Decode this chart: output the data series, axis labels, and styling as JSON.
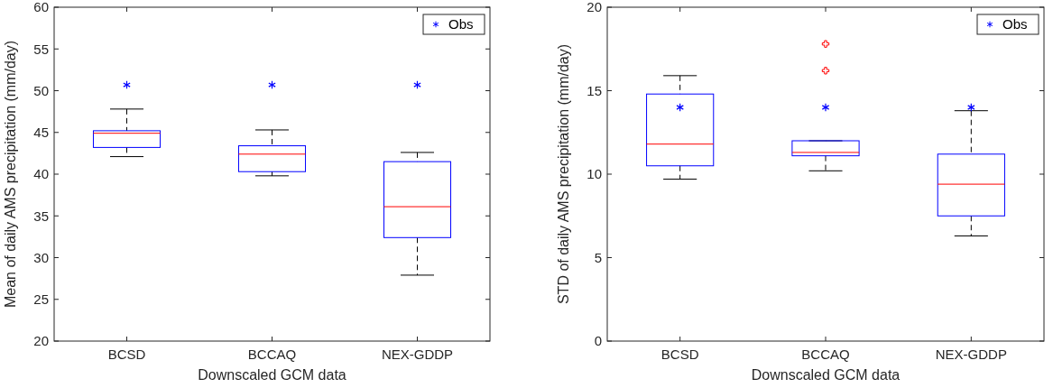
{
  "chart_data": [
    {
      "type": "box",
      "xlabel": "Downscaled GCM data",
      "ylabel": "Mean of daily AMS precipitation (mm/day)",
      "categories": [
        "BCSD",
        "BCCAQ",
        "NEX-GDDP"
      ],
      "ylim": [
        20,
        60
      ],
      "yticks": [
        20,
        25,
        30,
        35,
        40,
        45,
        50,
        55,
        60
      ],
      "grid": false,
      "legend": "top right",
      "series": [
        {
          "color": "#0000ff",
          "boxes": [
            {
              "low": 42.1,
              "q1": 43.2,
              "median": 44.9,
              "q3": 45.2,
              "high": 47.8
            },
            {
              "low": 39.8,
              "q1": 40.3,
              "median": 42.4,
              "q3": 43.4,
              "high": 45.3
            },
            {
              "low": 27.9,
              "q1": 32.4,
              "median": 36.1,
              "q3": 41.5,
              "high": 42.6
            }
          ]
        },
        {
          "type": "scatter",
          "name": "Obs",
          "color": "#0000ff",
          "marker": "cross",
          "x": [
            "BCSD",
            "BCCAQ",
            "NEX-GDDP"
          ],
          "values": [
            50.7,
            50.7,
            50.7
          ]
        }
      ]
    },
    {
      "type": "box",
      "xlabel": "Downscaled GCM data",
      "ylabel": "STD of daily AMS precipitation (mm/day)",
      "categories": [
        "BCSD",
        "BCCAQ",
        "NEX-GDDP"
      ],
      "ylim": [
        0,
        20
      ],
      "yticks": [
        0,
        5,
        10,
        15,
        20
      ],
      "grid": false,
      "legend": "top right",
      "series": [
        {
          "color": "#0000ff",
          "boxes": [
            {
              "low": 9.7,
              "q1": 10.5,
              "median": 11.8,
              "q3": 14.8,
              "high": 15.9
            },
            {
              "low": 10.2,
              "q1": 11.1,
              "median": 11.3,
              "q3": 12.0,
              "high": 12.0,
              "outliers": [
                16.2,
                17.8
              ]
            },
            {
              "low": 6.3,
              "q1": 7.5,
              "median": 9.4,
              "q3": 11.2,
              "high": 13.8
            }
          ]
        },
        {
          "type": "scatter",
          "name": "Obs",
          "color": "#0000ff",
          "marker": "cross",
          "x": [
            "BCSD",
            "BCCAQ",
            "NEX-GDDP"
          ],
          "values": [
            14.0,
            14.0,
            14.0
          ]
        }
      ]
    }
  ]
}
